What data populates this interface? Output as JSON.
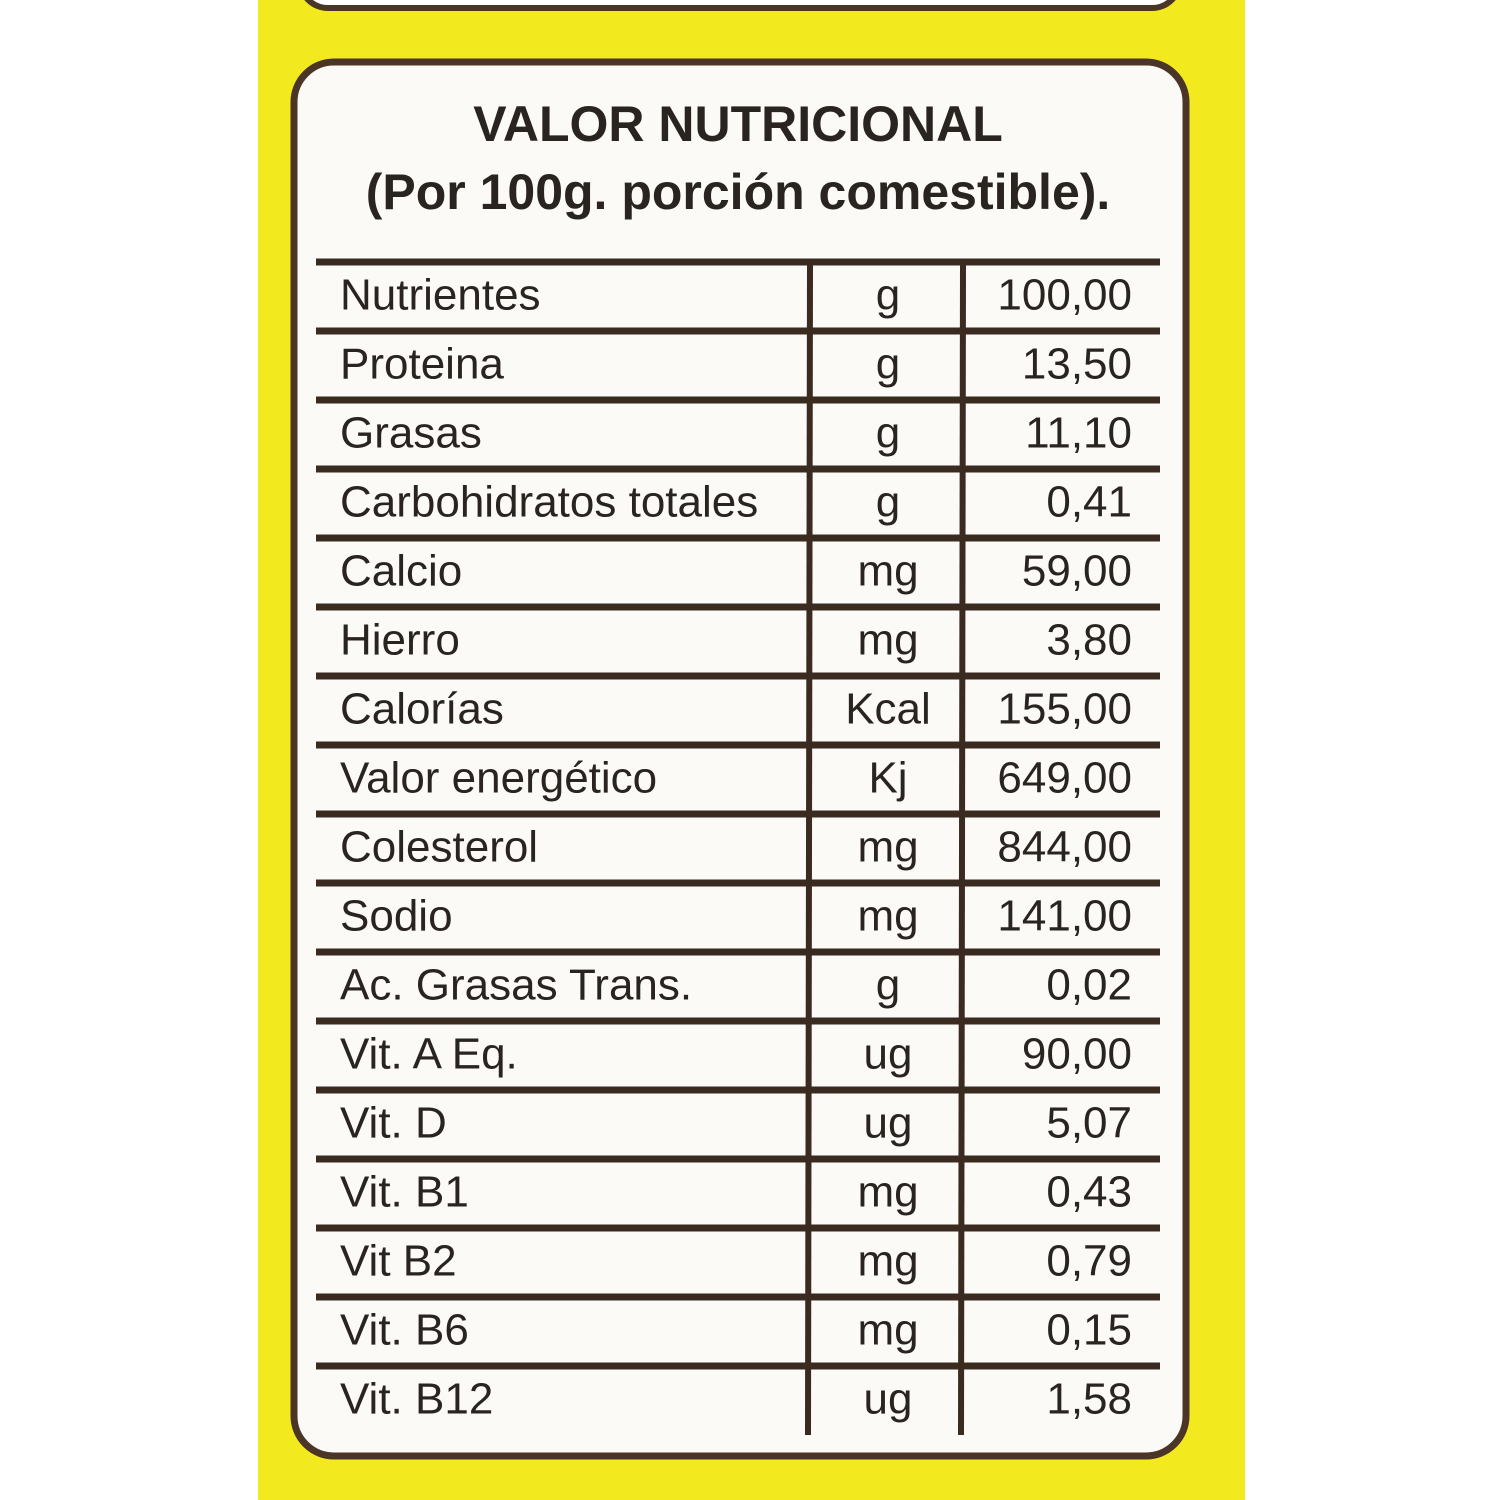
{
  "header": {
    "title": "VALOR NUTRICIONAL",
    "subtitle": "(Por 100g. porción comestible)."
  },
  "table": {
    "rows": [
      [
        "Nutrientes",
        "g",
        "100,00"
      ],
      [
        "Proteina",
        "g",
        "13,50"
      ],
      [
        "Grasas",
        "g",
        "11,10"
      ],
      [
        "Carbohidratos totales",
        "g",
        "0,41"
      ],
      [
        "Calcio",
        "mg",
        "59,00"
      ],
      [
        "Hierro",
        "mg",
        "3,80"
      ],
      [
        "Calorías",
        "Kcal",
        "155,00"
      ],
      [
        "Valor energético",
        "Kj",
        "649,00"
      ],
      [
        "Colesterol",
        "mg",
        "844,00"
      ],
      [
        "Sodio",
        "mg",
        "141,00"
      ],
      [
        "Ac. Grasas Trans.",
        "g",
        "0,02"
      ],
      [
        "Vit. A Eq.",
        "ug",
        "90,00"
      ],
      [
        "Vit. D",
        "ug",
        "5,07"
      ],
      [
        "Vit. B1",
        "mg",
        "0,43"
      ],
      [
        "Vit B2",
        "mg",
        "0,79"
      ],
      [
        "Vit. B6",
        "mg",
        "0,15"
      ],
      [
        "Vit. B12",
        "ug",
        "1,58"
      ]
    ]
  }
}
